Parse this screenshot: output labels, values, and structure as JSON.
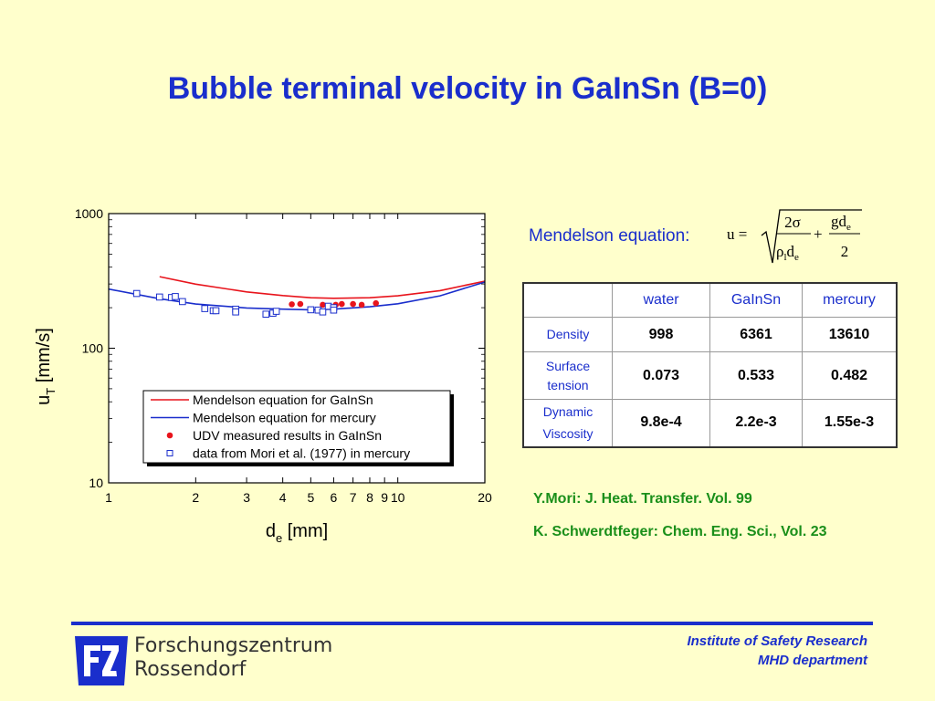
{
  "slide": {
    "title": "Bubble terminal velocity in GaInSn (B=0)"
  },
  "chart_data": {
    "type": "line",
    "x_scale": "log",
    "y_scale": "log",
    "xlim": [
      1,
      20
    ],
    "ylim": [
      10,
      1000
    ],
    "xlabel_main": "d",
    "xlabel_sub": "e",
    "xlabel_unit": " [mm]",
    "ylabel_main": "u",
    "ylabel_sub": "T",
    "ylabel_unit": " [mm/s]",
    "x_ticks": [
      1,
      2,
      3,
      4,
      5,
      6,
      7,
      8,
      9,
      10,
      20
    ],
    "x_tick_labels": [
      "1",
      "2",
      "3",
      "4",
      "5",
      "6",
      "7",
      "8",
      "9",
      "10",
      "20"
    ],
    "y_ticks": [
      10,
      100,
      1000
    ],
    "y_tick_labels": [
      "10",
      "100",
      "1000"
    ],
    "legend_position": "bottom-center",
    "series": [
      {
        "name": "Mendelson equation for GaInSn",
        "kind": "line",
        "color": "#e8141c",
        "points": [
          [
            1.5,
            340
          ],
          [
            2,
            299
          ],
          [
            3,
            262
          ],
          [
            4,
            246
          ],
          [
            5,
            237
          ],
          [
            6,
            235
          ],
          [
            8,
            237
          ],
          [
            10,
            245
          ],
          [
            14,
            268
          ],
          [
            20,
            315
          ]
        ]
      },
      {
        "name": "Mendelson equation for mercury",
        "kind": "line",
        "color": "#1a2ecc",
        "points": [
          [
            1,
            275
          ],
          [
            1.5,
            233
          ],
          [
            2,
            213
          ],
          [
            3,
            199
          ],
          [
            4,
            195
          ],
          [
            5,
            193
          ],
          [
            6,
            195
          ],
          [
            8,
            203
          ],
          [
            10,
            214
          ],
          [
            14,
            245
          ],
          [
            20,
            310
          ]
        ]
      },
      {
        "name": "UDV measured results in GaInSn",
        "kind": "marker-filled-circle",
        "color": "#e8141c",
        "points": [
          [
            4.3,
            212
          ],
          [
            4.6,
            213
          ],
          [
            5.5,
            210
          ],
          [
            6.1,
            210
          ],
          [
            6.4,
            213
          ],
          [
            7.0,
            213
          ],
          [
            7.5,
            210
          ],
          [
            8.4,
            216
          ]
        ]
      },
      {
        "name": "data from Mori et al. (1977) in mercury",
        "kind": "marker-open-square",
        "color": "#1a2ecc",
        "points": [
          [
            1.25,
            255
          ],
          [
            1.5,
            240
          ],
          [
            1.65,
            238
          ],
          [
            1.7,
            242
          ],
          [
            1.8,
            222
          ],
          [
            2.15,
            197
          ],
          [
            2.3,
            190
          ],
          [
            2.35,
            190
          ],
          [
            2.75,
            195
          ],
          [
            2.75,
            186
          ],
          [
            3.5,
            179
          ],
          [
            3.7,
            182
          ],
          [
            3.8,
            188
          ],
          [
            5.0,
            193
          ],
          [
            5.3,
            192
          ],
          [
            5.5,
            186
          ],
          [
            5.75,
            205
          ],
          [
            6.0,
            200
          ],
          [
            6.0,
            192
          ]
        ]
      }
    ]
  },
  "equation": {
    "label": "Mendelson equation:",
    "lhs": "u =",
    "num1": "2σ",
    "den1_rho": "ρ",
    "den1_rho_sub": "l",
    "den1_d": "d",
    "den1_d_sub": "e",
    "plus": "+",
    "num2": "gd",
    "num2_sub": "e",
    "den2": "2"
  },
  "table": {
    "columns": [
      "water",
      "GaInSn",
      "mercury"
    ],
    "rows": [
      {
        "label": "Density",
        "values": [
          "998",
          "6361",
          "13610"
        ]
      },
      {
        "label_line1": "Surface",
        "label_line2": "tension",
        "values": [
          "0.073",
          "0.533",
          "0.482"
        ]
      },
      {
        "label_line1": "Dynamic",
        "label_line2": "Viscosity",
        "values": [
          "9.8e-4",
          "2.2e-3",
          "1.55e-3"
        ]
      }
    ]
  },
  "references": [
    "Y.Mori: J. Heat. Transfer. Vol. 99",
    "K. Schwerdtfeger: Chem. Eng. Sci., Vol. 23"
  ],
  "footer": {
    "logo_text": "FZR",
    "org_line1": "Forschungszentrum",
    "org_line2": "Rossendorf",
    "institute": "Institute of Safety Research",
    "department": "MHD department",
    "brand_color": "#1a2ecc"
  }
}
